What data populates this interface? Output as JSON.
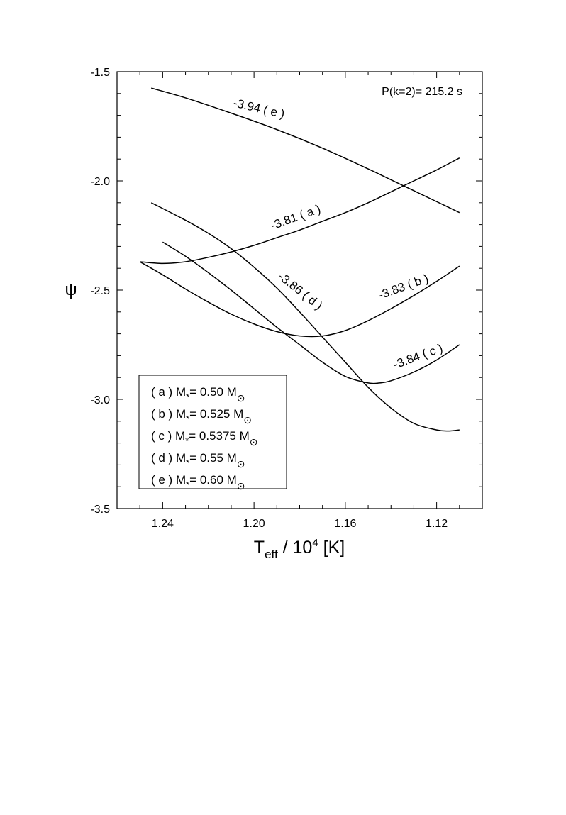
{
  "chart_data": {
    "type": "line",
    "xlabel": {
      "main": "T",
      "sub": "eff",
      "mid": " / 10",
      "sup": "4",
      "tail": " [K]"
    },
    "ylabel": "ψ",
    "xlim": [
      1.26,
      1.1
    ],
    "ylim": [
      -3.5,
      -1.5
    ],
    "xticks": [
      1.24,
      1.2,
      1.16,
      1.12
    ],
    "xtick_labels": [
      "1.24",
      "1.20",
      "1.16",
      "1.12"
    ],
    "yticks": [
      -1.5,
      -2.0,
      -2.5,
      -3.0,
      -3.5
    ],
    "ytick_labels": [
      "-1.5",
      "-2.0",
      "-2.5",
      "-3.0",
      "-3.5"
    ],
    "annotation": "P(k=2)= 215.2 s",
    "series": [
      {
        "id": "a",
        "label": "-3.81 ( a )",
        "x": [
          1.25,
          1.24,
          1.23,
          1.22,
          1.21,
          1.2,
          1.19,
          1.18,
          1.17,
          1.16,
          1.15,
          1.14,
          1.13,
          1.12,
          1.11
        ],
        "y": [
          -2.37,
          -2.378,
          -2.37,
          -2.35,
          -2.325,
          -2.295,
          -2.26,
          -2.225,
          -2.185,
          -2.145,
          -2.1,
          -2.05,
          -2.0,
          -1.95,
          -1.895
        ]
      },
      {
        "id": "b",
        "label": "-3.83 ( b )",
        "x": [
          1.25,
          1.24,
          1.23,
          1.22,
          1.21,
          1.2,
          1.19,
          1.18,
          1.17,
          1.16,
          1.15,
          1.14,
          1.13,
          1.12,
          1.11
        ],
        "y": [
          -2.37,
          -2.43,
          -2.495,
          -2.555,
          -2.61,
          -2.655,
          -2.69,
          -2.71,
          -2.71,
          -2.685,
          -2.64,
          -2.585,
          -2.525,
          -2.46,
          -2.39
        ]
      },
      {
        "id": "c",
        "label": "-3.84 ( c )",
        "x": [
          1.24,
          1.23,
          1.22,
          1.21,
          1.2,
          1.19,
          1.18,
          1.17,
          1.16,
          1.15,
          1.145,
          1.14,
          1.13,
          1.12,
          1.11
        ],
        "y": [
          -2.28,
          -2.345,
          -2.42,
          -2.5,
          -2.585,
          -2.67,
          -2.75,
          -2.83,
          -2.895,
          -2.925,
          -2.925,
          -2.915,
          -2.875,
          -2.82,
          -2.75
        ]
      },
      {
        "id": "d",
        "label": "-3.86 ( d )",
        "x": [
          1.245,
          1.23,
          1.22,
          1.21,
          1.2,
          1.19,
          1.18,
          1.17,
          1.16,
          1.15,
          1.14,
          1.13,
          1.12,
          1.115,
          1.11
        ],
        "y": [
          -2.1,
          -2.18,
          -2.24,
          -2.31,
          -2.395,
          -2.49,
          -2.6,
          -2.715,
          -2.83,
          -2.945,
          -3.04,
          -3.11,
          -3.14,
          -3.145,
          -3.14
        ]
      },
      {
        "id": "e",
        "label": "-3.94 ( e )",
        "x": [
          1.245,
          1.23,
          1.21,
          1.19,
          1.17,
          1.15,
          1.14,
          1.13,
          1.12,
          1.11
        ],
        "y": [
          -1.575,
          -1.62,
          -1.69,
          -1.765,
          -1.85,
          -1.945,
          -1.995,
          -2.045,
          -2.095,
          -2.145
        ]
      }
    ],
    "legend": {
      "position": "bottom-left",
      "entries": [
        {
          "id": "a",
          "prefix": "( a ) M",
          "star": "*",
          "mid": "= 0.50 M",
          "sun": "⊙"
        },
        {
          "id": "b",
          "prefix": "( b ) M",
          "star": "*",
          "mid": "= 0.525 M",
          "sun": "⊙"
        },
        {
          "id": "c",
          "prefix": "( c ) M",
          "star": "*",
          "mid": "= 0.5375 M",
          "sun": "⊙"
        },
        {
          "id": "d",
          "prefix": "( d ) M",
          "star": "*",
          "mid": "= 0.55 M",
          "sun": "⊙"
        },
        {
          "id": "e",
          "prefix": "( e ) M",
          "star": "*",
          "mid": "= 0.60 M",
          "sun": "⊙"
        }
      ]
    },
    "grid": false
  }
}
